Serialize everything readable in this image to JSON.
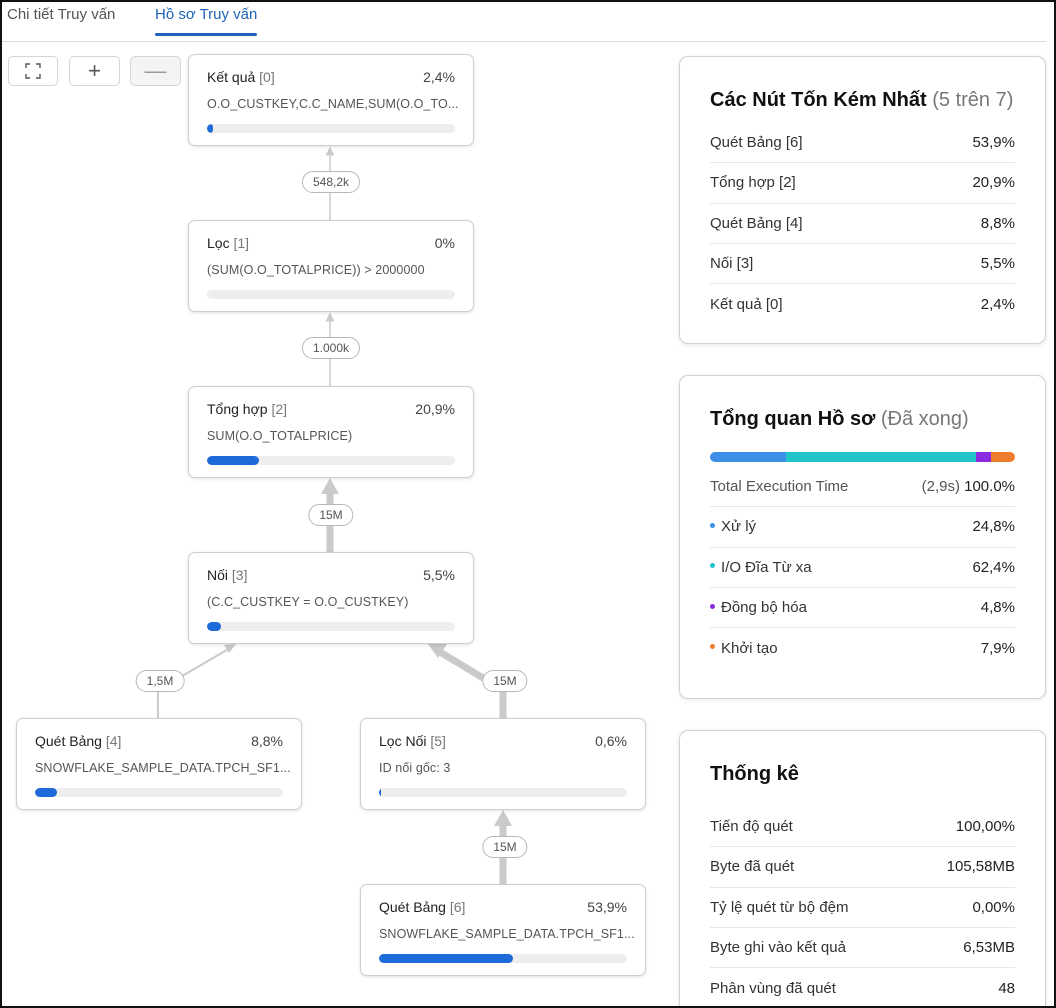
{
  "tabs": [
    {
      "label": "Chi tiết Truy vấn",
      "active": false
    },
    {
      "label": "Hồ sơ Truy vấn",
      "active": true
    }
  ],
  "toolbar": {
    "fit_icon": "fit-to-screen-icon",
    "zoom_in_label": "+",
    "zoom_out_label": "—"
  },
  "nodes": {
    "n0": {
      "name": "Kết quả",
      "idx": "[0]",
      "pct": "2,4%",
      "desc": "O.O_CUSTKEY,C.C_NAME,SUM(O.O_TO...",
      "progress": 2.4
    },
    "n1": {
      "name": "Lọc",
      "idx": "[1]",
      "pct": "0%",
      "desc": "(SUM(O.O_TOTALPRICE)) > 2000000",
      "progress": 0
    },
    "n2": {
      "name": "Tổng hợp",
      "idx": "[2]",
      "pct": "20,9%",
      "desc": "SUM(O.O_TOTALPRICE)",
      "progress": 20.9
    },
    "n3": {
      "name": "Nối",
      "idx": "[3]",
      "pct": "5,5%",
      "desc": "(C.C_CUSTKEY = O.O_CUSTKEY)",
      "progress": 5.5
    },
    "n4": {
      "name": "Quét Bảng",
      "idx": "[4]",
      "pct": "8,8%",
      "desc": "SNOWFLAKE_SAMPLE_DATA.TPCH_SF1...",
      "progress": 8.8
    },
    "n5": {
      "name": "Lọc Nối",
      "idx": "[5]",
      "pct": "0,6%",
      "desc": "ID nối gốc: 3",
      "progress": 0.6
    },
    "n6": {
      "name": "Quét Bảng",
      "idx": "[6]",
      "pct": "53,9%",
      "desc": "SNOWFLAKE_SAMPLE_DATA.TPCH_SF1...",
      "progress": 53.9
    }
  },
  "edges": {
    "e10": "548,2k",
    "e21": "1.000k",
    "e32": "15M",
    "e43": "1,5M",
    "e53": "15M",
    "e65": "15M"
  },
  "worst_nodes": {
    "title": "Các Nút Tốn Kém Nhất",
    "subtitle": "(5 trên 7)",
    "rows": [
      {
        "label": "Quét Bảng [6]",
        "value": "53,9%"
      },
      {
        "label": "Tổng hợp [2]",
        "value": "20,9%"
      },
      {
        "label": "Quét Bảng [4]",
        "value": "8,8%"
      },
      {
        "label": "Nối [3]",
        "value": "5,5%"
      },
      {
        "label": "Kết quả [0]",
        "value": "2,4%"
      }
    ]
  },
  "overview": {
    "title": "Tổng quan Hồ sơ",
    "subtitle": "(Đã xong)",
    "total_label": "Total Execution Time",
    "total_time": "(2,9s)",
    "total_value": "100.0%",
    "rows": [
      {
        "label": "Xử lý",
        "value": "24,8%",
        "color": "#3d8ee6",
        "fraction": 0.248
      },
      {
        "label": "I/O Đĩa Từ xa",
        "value": "62,4%",
        "color": "#22c4c9",
        "fraction": 0.624
      },
      {
        "label": "Đồng bộ hóa",
        "value": "4,8%",
        "color": "#8a2be2",
        "fraction": 0.048
      },
      {
        "label": "Khởi tạo",
        "value": "7,9%",
        "color": "#ee7d2d",
        "fraction": 0.079
      }
    ]
  },
  "stats": {
    "title": "Thống kê",
    "rows": [
      {
        "label": "Tiến độ quét",
        "value": "100,00%"
      },
      {
        "label": "Byte đã quét",
        "value": "105,58MB"
      },
      {
        "label": "Tỷ lệ quét từ bộ đệm",
        "value": "0,00%"
      },
      {
        "label": "Byte ghi vào kết quả",
        "value": "6,53MB"
      },
      {
        "label": "Phân vùng đã quét",
        "value": "48"
      }
    ]
  }
}
